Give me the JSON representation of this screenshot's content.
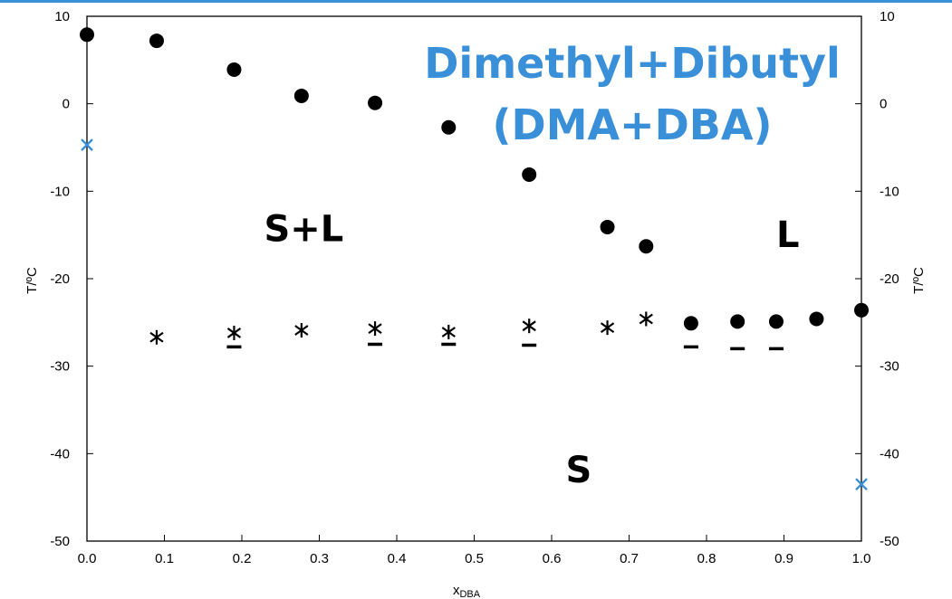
{
  "chart_data": {
    "type": "scatter",
    "title_lines": [
      "Dimethyl+Dibutyl",
      "(DMA+DBA)"
    ],
    "xlabel": "x",
    "xlabel_sub": "DBA",
    "ylabel": "T/ºC",
    "xlim": [
      0,
      1
    ],
    "ylim": [
      -50,
      10
    ],
    "x_ticks": [
      "0.0",
      "0.1",
      "0.2",
      "0.3",
      "0.4",
      "0.5",
      "0.6",
      "0.7",
      "0.8",
      "0.9",
      "1.0"
    ],
    "y_ticks": [
      "10",
      "0",
      "-10",
      "-20",
      "-30",
      "-40",
      "-50"
    ],
    "grid": false,
    "region_labels": [
      {
        "text": "S+L",
        "x": 0.28,
        "y": -15.7
      },
      {
        "text": "L",
        "x": 0.905,
        "y": -16.4
      },
      {
        "text": "S",
        "x": 0.635,
        "y": -43.3
      }
    ],
    "colors": {
      "primary": "#000000",
      "accent": "#3a8fd9"
    },
    "series": [
      {
        "marker": "filled-circle",
        "x": [
          0.0,
          0.09,
          0.19,
          0.277,
          0.372,
          0.467,
          0.571,
          0.672,
          0.722,
          0.78,
          0.84,
          0.89,
          0.942,
          1.0
        ],
        "y": [
          7.9,
          7.2,
          3.9,
          0.9,
          0.1,
          -2.7,
          -8.1,
          -14.1,
          -16.3,
          -25.1,
          -24.9,
          -24.9,
          -24.6,
          -23.6
        ]
      },
      {
        "marker": "asterisk",
        "x": [
          0.09,
          0.19,
          0.277,
          0.372,
          0.467,
          0.571,
          0.672,
          0.722
        ],
        "y": [
          -26.7,
          -26.2,
          -25.9,
          -25.7,
          -26.1,
          -25.4,
          -25.6,
          -24.6
        ]
      },
      {
        "marker": "dash",
        "x": [
          0.19,
          0.372,
          0.467,
          0.571,
          0.78,
          0.84,
          0.89
        ],
        "y": [
          -27.8,
          -27.5,
          -27.5,
          -27.6,
          -27.8,
          -28.0,
          -28.0
        ]
      },
      {
        "marker": "x-cross",
        "color": "#3a8fd9",
        "x": [
          0.0,
          1.0
        ],
        "y": [
          -4.7,
          -43.5
        ]
      }
    ]
  }
}
